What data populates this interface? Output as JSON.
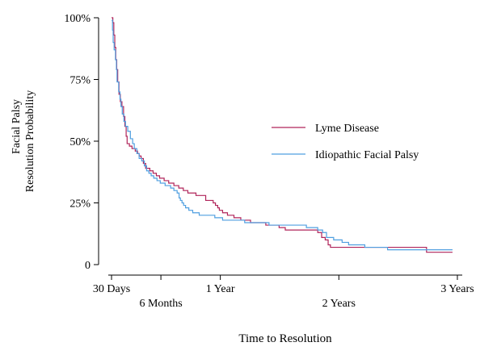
{
  "chart_data": {
    "type": "line",
    "step": true,
    "xlabel": "Time to Resolution",
    "ylabel_lines": [
      "Facial Palsy",
      "Resolution Probability"
    ],
    "ylim": [
      0,
      1
    ],
    "xlim_days": [
      20,
      1110
    ],
    "y_ticks": [
      {
        "value": 0,
        "label": "0"
      },
      {
        "value": 0.25,
        "label": "25%"
      },
      {
        "value": 0.5,
        "label": "50%"
      },
      {
        "value": 0.75,
        "label": "75%"
      },
      {
        "value": 1,
        "label": "100%"
      }
    ],
    "x_ticks": [
      {
        "value": 30,
        "label": "30 Days",
        "row": 1
      },
      {
        "value": 182,
        "label": "6 Months",
        "row": 2
      },
      {
        "value": 365,
        "label": "1 Year",
        "row": 1
      },
      {
        "value": 730,
        "label": "2 Years",
        "row": 2
      },
      {
        "value": 1095,
        "label": "3 Years",
        "row": 1
      }
    ],
    "legend": {
      "position": "right-center"
    },
    "series": [
      {
        "name": "Lyme Disease",
        "color": "#b0245a",
        "points": [
          [
            30,
            1.0
          ],
          [
            34,
            0.98
          ],
          [
            37,
            0.93
          ],
          [
            40,
            0.88
          ],
          [
            43,
            0.83
          ],
          [
            46,
            0.79
          ],
          [
            49,
            0.74
          ],
          [
            53,
            0.69
          ],
          [
            57,
            0.66
          ],
          [
            62,
            0.64
          ],
          [
            67,
            0.6
          ],
          [
            71,
            0.56
          ],
          [
            75,
            0.52
          ],
          [
            78,
            0.49
          ],
          [
            85,
            0.48
          ],
          [
            93,
            0.47
          ],
          [
            103,
            0.46
          ],
          [
            110,
            0.45
          ],
          [
            115,
            0.44
          ],
          [
            121,
            0.43
          ],
          [
            128,
            0.41
          ],
          [
            135,
            0.39
          ],
          [
            148,
            0.38
          ],
          [
            158,
            0.37
          ],
          [
            168,
            0.36
          ],
          [
            178,
            0.35
          ],
          [
            192,
            0.34
          ],
          [
            206,
            0.33
          ],
          [
            222,
            0.32
          ],
          [
            237,
            0.31
          ],
          [
            251,
            0.3
          ],
          [
            265,
            0.29
          ],
          [
            290,
            0.28
          ],
          [
            320,
            0.26
          ],
          [
            343,
            0.25
          ],
          [
            350,
            0.24
          ],
          [
            357,
            0.23
          ],
          [
            362,
            0.22
          ],
          [
            372,
            0.21
          ],
          [
            387,
            0.2
          ],
          [
            407,
            0.19
          ],
          [
            428,
            0.18
          ],
          [
            458,
            0.17
          ],
          [
            505,
            0.16
          ],
          [
            546,
            0.15
          ],
          [
            565,
            0.14
          ],
          [
            665,
            0.13
          ],
          [
            677,
            0.11
          ],
          [
            688,
            0.1
          ],
          [
            697,
            0.08
          ],
          [
            704,
            0.07
          ],
          [
            850,
            0.07
          ],
          [
            980,
            0.07
          ],
          [
            1000,
            0.05
          ],
          [
            1080,
            0.05
          ]
        ]
      },
      {
        "name": "Idiopathic Facial Palsy",
        "color": "#4f9fe0",
        "points": [
          [
            30,
            0.99
          ],
          [
            33,
            0.95
          ],
          [
            35,
            0.9
          ],
          [
            38,
            0.87
          ],
          [
            42,
            0.83
          ],
          [
            45,
            0.79
          ],
          [
            47,
            0.74
          ],
          [
            52,
            0.7
          ],
          [
            56,
            0.67
          ],
          [
            59,
            0.64
          ],
          [
            63,
            0.61
          ],
          [
            68,
            0.58
          ],
          [
            73,
            0.56
          ],
          [
            80,
            0.54
          ],
          [
            88,
            0.51
          ],
          [
            95,
            0.49
          ],
          [
            100,
            0.47
          ],
          [
            108,
            0.45
          ],
          [
            115,
            0.43
          ],
          [
            123,
            0.42
          ],
          [
            131,
            0.4
          ],
          [
            138,
            0.38
          ],
          [
            145,
            0.37
          ],
          [
            152,
            0.36
          ],
          [
            160,
            0.35
          ],
          [
            170,
            0.34
          ],
          [
            180,
            0.33
          ],
          [
            195,
            0.32
          ],
          [
            212,
            0.31
          ],
          [
            222,
            0.3
          ],
          [
            232,
            0.29
          ],
          [
            238,
            0.27
          ],
          [
            242,
            0.26
          ],
          [
            247,
            0.25
          ],
          [
            252,
            0.24
          ],
          [
            258,
            0.23
          ],
          [
            268,
            0.22
          ],
          [
            280,
            0.21
          ],
          [
            300,
            0.2
          ],
          [
            348,
            0.19
          ],
          [
            372,
            0.18
          ],
          [
            440,
            0.17
          ],
          [
            515,
            0.16
          ],
          [
            630,
            0.15
          ],
          [
            665,
            0.14
          ],
          [
            680,
            0.13
          ],
          [
            692,
            0.11
          ],
          [
            714,
            0.1
          ],
          [
            740,
            0.09
          ],
          [
            760,
            0.08
          ],
          [
            810,
            0.07
          ],
          [
            880,
            0.06
          ],
          [
            1080,
            0.06
          ]
        ]
      }
    ]
  }
}
